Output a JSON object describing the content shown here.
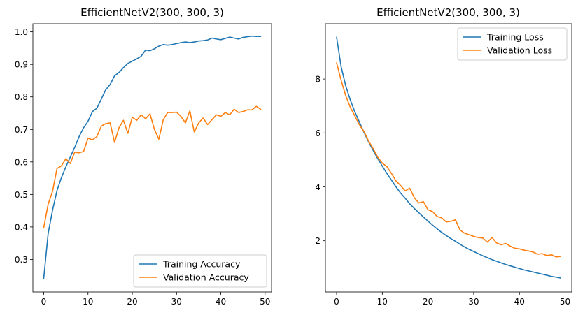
{
  "chart_data": [
    {
      "type": "line",
      "title": "EfficientNetV2(300, 300, 3)",
      "xlabel": "",
      "ylabel": "",
      "xlim": [
        -2.45,
        51.45
      ],
      "ylim": [
        0.2,
        1.025
      ],
      "xticks": [
        0,
        10,
        20,
        30,
        40,
        50
      ],
      "yticks": [
        0.3,
        0.4,
        0.5,
        0.6,
        0.7,
        0.8,
        0.9,
        1.0
      ],
      "ytick_labels": [
        "0.3",
        "0.4",
        "0.5",
        "0.6",
        "0.7",
        "0.8",
        "0.9",
        "1.0"
      ],
      "grid": false,
      "legend": "lower-right",
      "x": [
        0,
        1,
        2,
        3,
        4,
        5,
        6,
        7,
        8,
        9,
        10,
        11,
        12,
        13,
        14,
        15,
        16,
        17,
        18,
        19,
        20,
        21,
        22,
        23,
        24,
        25,
        26,
        27,
        28,
        29,
        30,
        31,
        32,
        33,
        34,
        35,
        36,
        37,
        38,
        39,
        40,
        41,
        42,
        43,
        44,
        45,
        46,
        47,
        48,
        49
      ],
      "series": [
        {
          "name": "Training Accuracy",
          "color": "#1f77b4",
          "values": [
            0.242,
            0.38,
            0.452,
            0.512,
            0.552,
            0.585,
            0.615,
            0.645,
            0.678,
            0.705,
            0.725,
            0.755,
            0.765,
            0.793,
            0.822,
            0.838,
            0.865,
            0.875,
            0.89,
            0.903,
            0.91,
            0.917,
            0.925,
            0.944,
            0.942,
            0.948,
            0.956,
            0.961,
            0.959,
            0.961,
            0.964,
            0.967,
            0.969,
            0.967,
            0.969,
            0.972,
            0.973,
            0.975,
            0.981,
            0.978,
            0.976,
            0.98,
            0.984,
            0.981,
            0.978,
            0.983,
            0.985,
            0.987,
            0.986,
            0.986
          ]
        },
        {
          "name": "Validation Accuracy",
          "color": "#ff7f0e",
          "values": [
            0.398,
            0.47,
            0.51,
            0.58,
            0.588,
            0.61,
            0.595,
            0.63,
            0.628,
            0.632,
            0.673,
            0.668,
            0.678,
            0.71,
            0.718,
            0.72,
            0.66,
            0.705,
            0.728,
            0.688,
            0.738,
            0.728,
            0.745,
            0.733,
            0.748,
            0.7,
            0.67,
            0.73,
            0.752,
            0.752,
            0.753,
            0.74,
            0.72,
            0.757,
            0.692,
            0.72,
            0.735,
            0.715,
            0.73,
            0.745,
            0.74,
            0.752,
            0.745,
            0.762,
            0.752,
            0.755,
            0.76,
            0.76,
            0.771,
            0.762
          ]
        }
      ]
    },
    {
      "type": "line",
      "title": "EfficientNetV2(300, 300, 3)",
      "xlabel": "",
      "ylabel": "",
      "xlim": [
        -2.45,
        51.45
      ],
      "ylim": [
        0.1,
        10.05
      ],
      "xticks": [
        0,
        10,
        20,
        30,
        40,
        50
      ],
      "yticks": [
        2,
        4,
        6,
        8
      ],
      "ytick_labels": [
        "2",
        "4",
        "6",
        "8"
      ],
      "grid": false,
      "legend": "top-right",
      "x": [
        0,
        1,
        2,
        3,
        4,
        5,
        6,
        7,
        8,
        9,
        10,
        11,
        12,
        13,
        14,
        15,
        16,
        17,
        18,
        19,
        20,
        21,
        22,
        23,
        24,
        25,
        26,
        27,
        28,
        29,
        30,
        31,
        32,
        33,
        34,
        35,
        36,
        37,
        38,
        39,
        40,
        41,
        42,
        43,
        44,
        45,
        46,
        47,
        48,
        49
      ],
      "series": [
        {
          "name": "Training Loss",
          "color": "#1f77b4",
          "values": [
            9.55,
            8.45,
            7.75,
            7.22,
            6.78,
            6.4,
            6.02,
            5.67,
            5.35,
            5.05,
            4.77,
            4.5,
            4.25,
            4.0,
            3.77,
            3.58,
            3.37,
            3.2,
            3.04,
            2.88,
            2.73,
            2.58,
            2.44,
            2.31,
            2.19,
            2.08,
            1.98,
            1.87,
            1.77,
            1.68,
            1.6,
            1.52,
            1.44,
            1.37,
            1.3,
            1.24,
            1.18,
            1.12,
            1.07,
            1.02,
            0.97,
            0.92,
            0.88,
            0.84,
            0.8,
            0.76,
            0.72,
            0.68,
            0.65,
            0.62
          ]
        },
        {
          "name": "Validation Loss",
          "color": "#ff7f0e",
          "values": [
            8.6,
            7.95,
            7.38,
            6.95,
            6.63,
            6.3,
            6.05,
            5.7,
            5.42,
            5.1,
            4.88,
            4.75,
            4.5,
            4.22,
            4.05,
            3.85,
            3.95,
            3.6,
            3.4,
            3.45,
            3.15,
            3.08,
            2.9,
            2.85,
            2.7,
            2.72,
            2.78,
            2.4,
            2.28,
            2.22,
            2.16,
            2.12,
            2.1,
            1.95,
            2.12,
            1.92,
            1.85,
            1.9,
            1.8,
            1.72,
            1.7,
            1.65,
            1.62,
            1.58,
            1.5,
            1.52,
            1.45,
            1.48,
            1.4,
            1.42
          ]
        }
      ]
    }
  ]
}
